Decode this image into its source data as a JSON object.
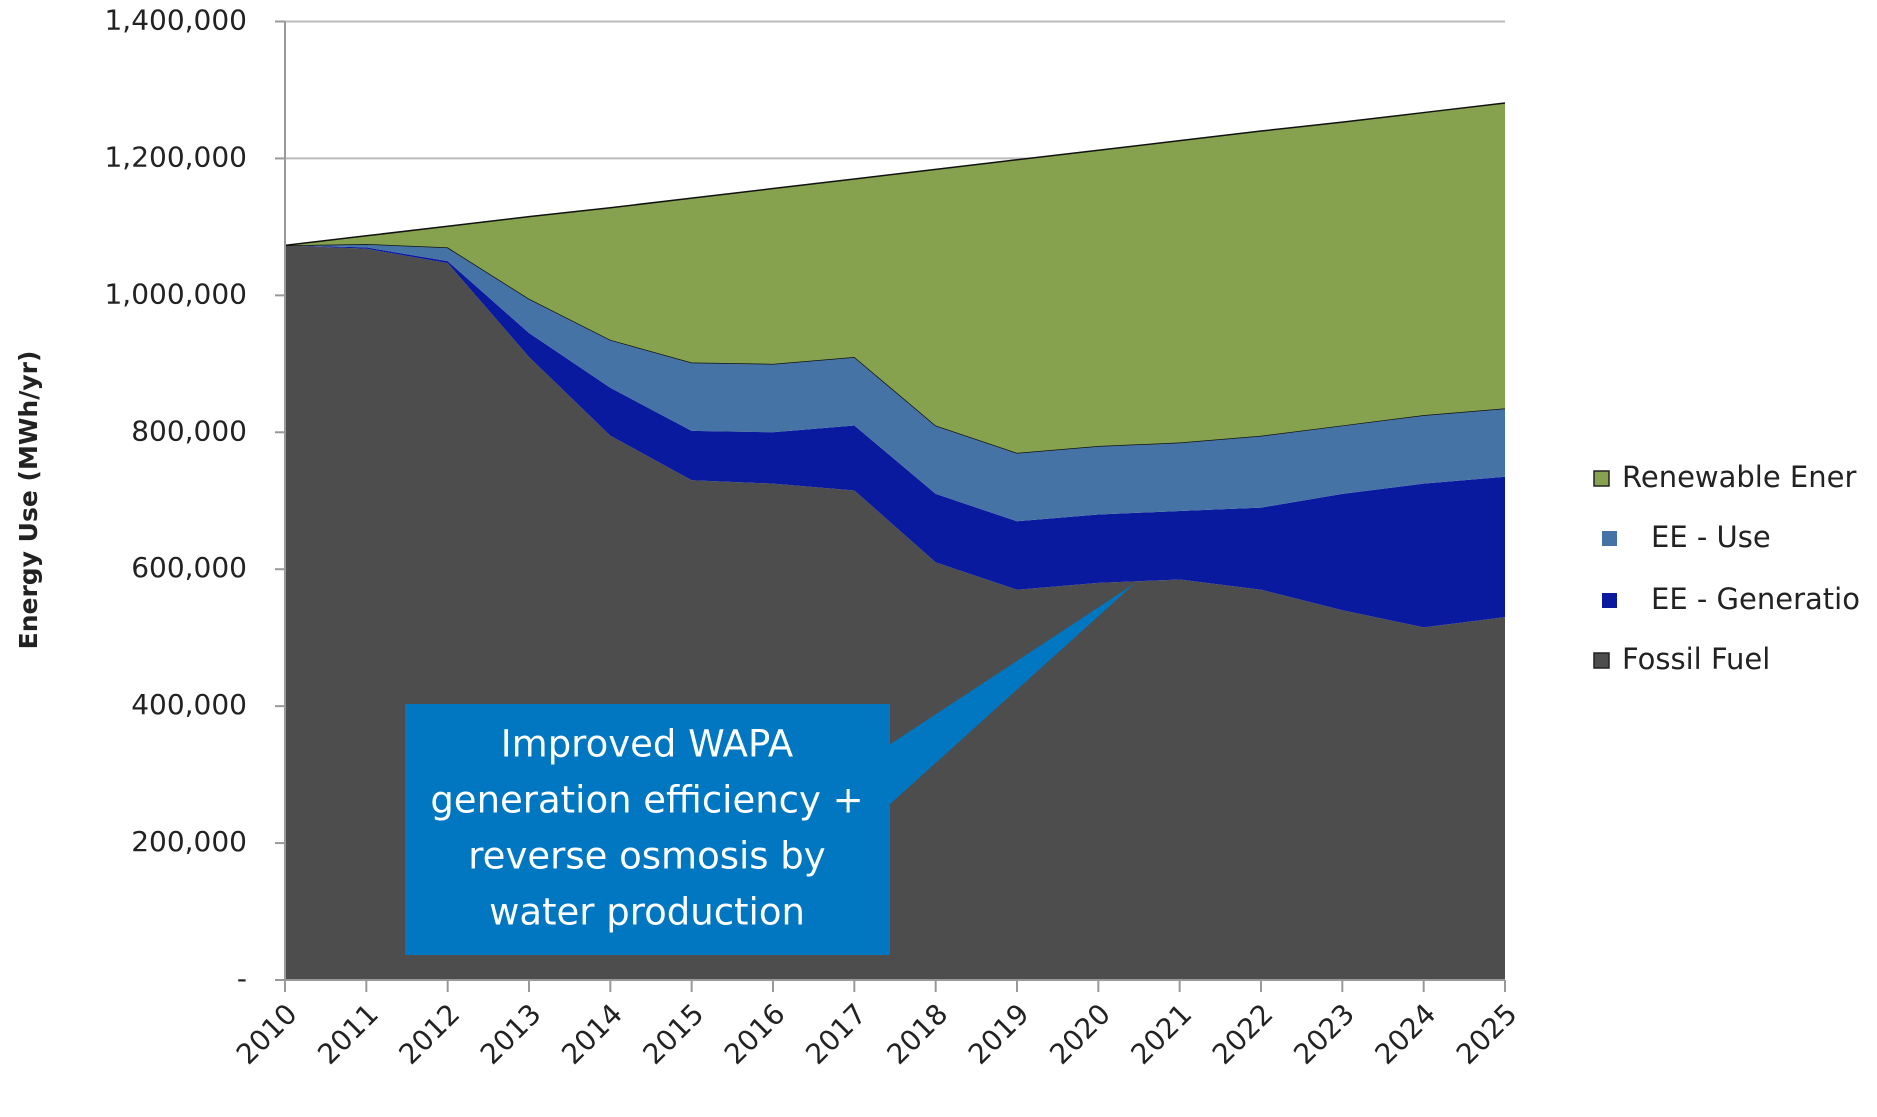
{
  "chart_data": {
    "type": "stacked_area",
    "y_label": "Energy Use (MWh/yr)",
    "categories": [
      "2010",
      "2011",
      "2012",
      "2013",
      "2014",
      "2015",
      "2016",
      "2017",
      "2018",
      "2019",
      "2020",
      "2021",
      "2022",
      "2023",
      "2024",
      "2025"
    ],
    "series": [
      {
        "name": "Fossil Fuel",
        "color": "#4d4d4d",
        "values": [
          1073000,
          1068000,
          1047000,
          910000,
          795000,
          730000,
          725000,
          715000,
          610000,
          570000,
          580000,
          585000,
          570000,
          540000,
          515000,
          530000
        ]
      },
      {
        "name": "EE - Generatio",
        "color": "#0a1a9e",
        "values": [
          0,
          2000,
          3000,
          35000,
          70000,
          72000,
          75000,
          95000,
          100000,
          100000,
          100000,
          100000,
          120000,
          170000,
          210000,
          205000
        ]
      },
      {
        "name": "EE - Use",
        "color": "#4673a5",
        "values": [
          0,
          5000,
          20000,
          50000,
          70000,
          100000,
          100000,
          100000,
          100000,
          100000,
          100000,
          100000,
          105000,
          100000,
          100000,
          100000
        ]
      },
      {
        "name": "Renewable Ener",
        "color": "#86a24f",
        "values": [
          0,
          12000,
          31000,
          120000,
          193000,
          240000,
          256000,
          260000,
          374000,
          428000,
          432000,
          441000,
          445000,
          443000,
          442000,
          446000
        ]
      }
    ],
    "ylim": [
      0,
      1400000
    ],
    "yticks": [
      {
        "value": 0,
        "label": "-"
      },
      {
        "value": 200000,
        "label": "200,000"
      },
      {
        "value": 400000,
        "label": "400,000"
      },
      {
        "value": 600000,
        "label": "600,000"
      },
      {
        "value": 800000,
        "label": "800,000"
      },
      {
        "value": 1000000,
        "label": "1,000,000"
      },
      {
        "value": 1200000,
        "label": "1,200,000"
      },
      {
        "value": 1400000,
        "label": "1,400,000"
      }
    ],
    "grid": true,
    "legend": "right",
    "annotation": {
      "lines": [
        "Improved WAPA",
        "generation efficiency +",
        "reverse osmosis by",
        "water production"
      ],
      "color": "#0077c0"
    }
  }
}
